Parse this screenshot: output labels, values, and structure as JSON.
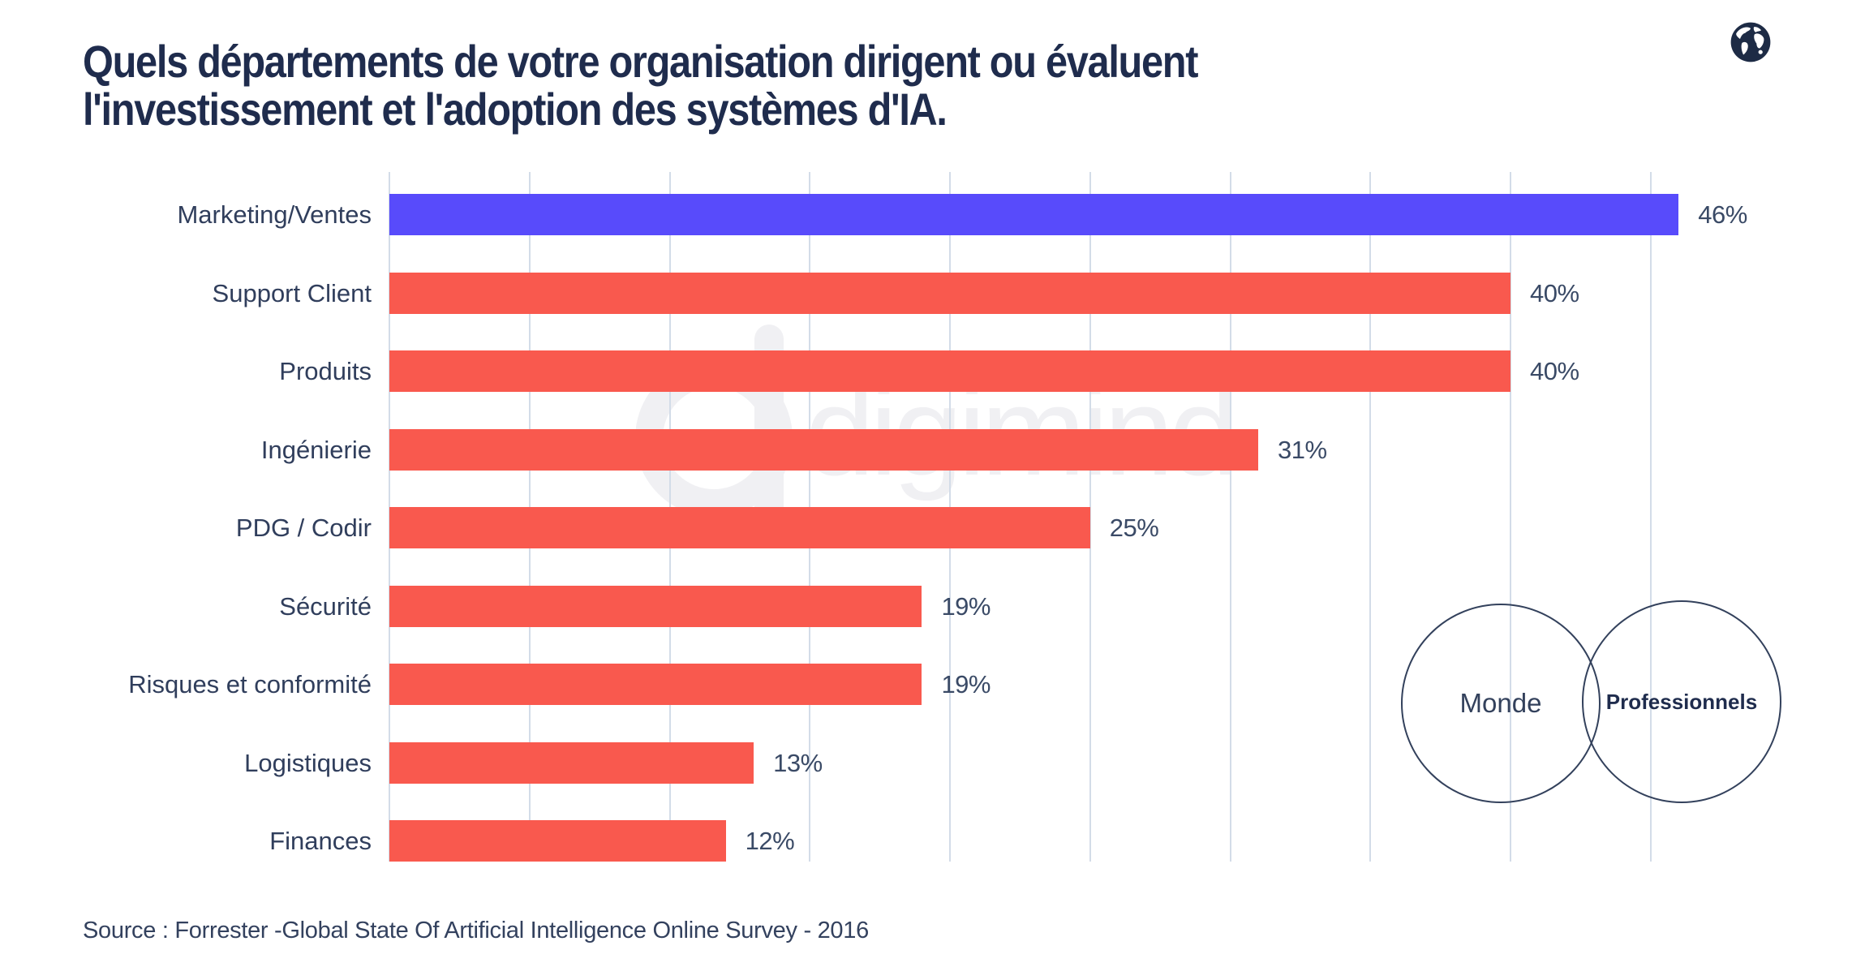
{
  "header": {
    "title_line1": "Quels départements de votre organisation dirigent ou évaluent",
    "title_line2": "l'investissement et l'adoption des systèmes d'IA.",
    "logo_icon": "globe-icon",
    "logo_color": "#1d2b45"
  },
  "chart_data": {
    "type": "bar",
    "orientation": "horizontal",
    "title": "Quels départements de votre organisation dirigent ou évaluent l'investissement et l'adoption des systèmes d'IA.",
    "categories": [
      "Marketing/Ventes",
      "Support Client",
      "Produits",
      "Ingénierie",
      "PDG / Codir",
      "Sécurité",
      "Risques et conformité",
      "Logistiques",
      "Finances"
    ],
    "values": [
      46,
      40,
      40,
      31,
      25,
      19,
      19,
      13,
      12
    ],
    "value_labels": [
      "46%",
      "40%",
      "40%",
      "31%",
      "25%",
      "19%",
      "19%",
      "13%",
      "12%"
    ],
    "bar_colors": [
      "#584BFB",
      "#F9594E",
      "#F9594E",
      "#F9594E",
      "#F9594E",
      "#F9594E",
      "#F9594E",
      "#F9594E",
      "#F9594E"
    ],
    "highlight_color": "#584BFB",
    "default_color": "#F9594E",
    "xlabel": "",
    "ylabel": "",
    "xlim": [
      0,
      52
    ],
    "grid": true,
    "gridlines_percent": [
      0,
      5,
      10,
      15,
      20,
      25,
      30,
      35,
      40,
      45
    ],
    "gridline_color": "#d3dce8",
    "legend_position": "none"
  },
  "venn": {
    "left_label": "Monde",
    "right_label": "Professionnels",
    "stroke_color": "#33415c"
  },
  "watermark": {
    "text": "digimind",
    "color": "#f0f0f3"
  },
  "footer": {
    "source": "Source :  Forrester -Global State Of Artificial Intelligence Online Survey  - 2016"
  }
}
